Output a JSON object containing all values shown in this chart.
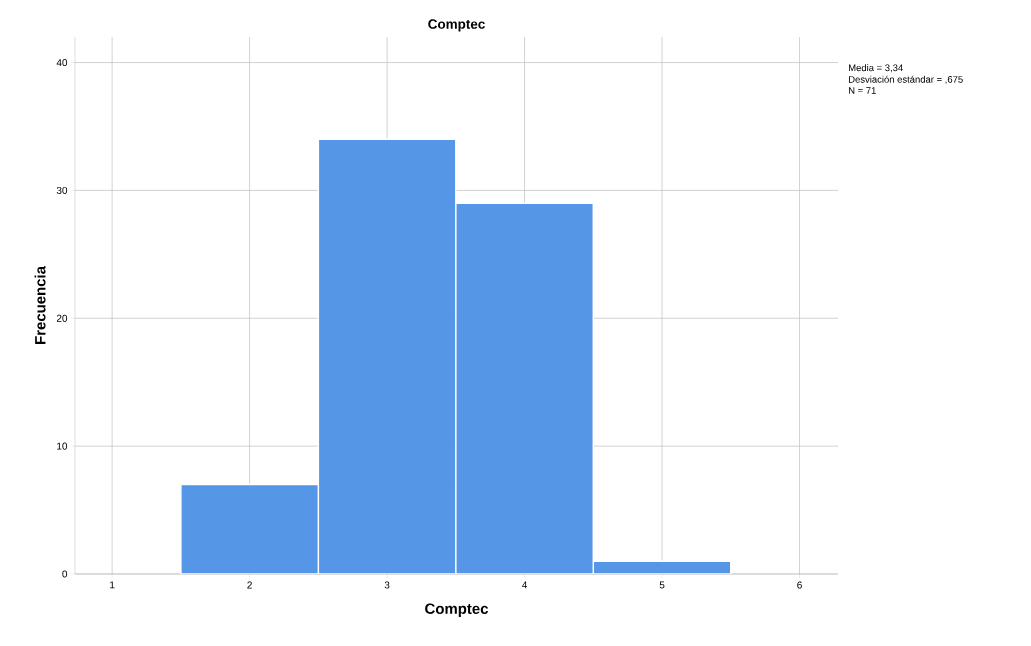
{
  "chart_data": {
    "type": "histogram",
    "title": "Comptec",
    "xlabel": "Comptec",
    "ylabel": "Frecuencia",
    "bins": [
      1.5,
      2.5,
      3.5,
      4.5,
      5.5
    ],
    "values": [
      7,
      34,
      29,
      1
    ],
    "color": "#5596e6",
    "xlim": [
      0.73,
      6.28
    ],
    "ylim": [
      0,
      42
    ],
    "xticks": [
      1,
      2,
      3,
      4,
      5,
      6
    ],
    "yticks": [
      0,
      10,
      20,
      30,
      40
    ],
    "grid": true,
    "annotations": [
      "Media = 3,34",
      "Desviación estándar = ,675",
      "N = 71"
    ]
  }
}
